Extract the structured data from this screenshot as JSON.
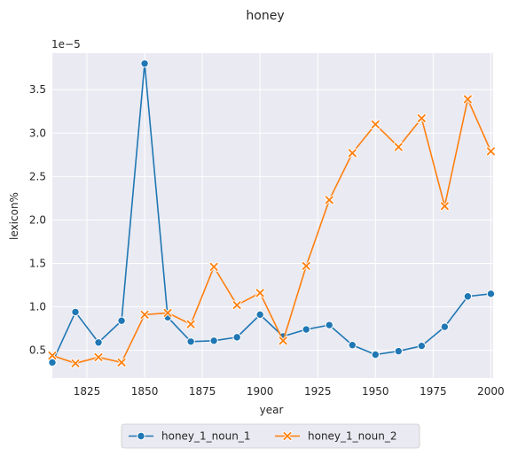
{
  "chart_data": {
    "type": "line",
    "title": "honey",
    "xlabel": "year",
    "ylabel": "lexicon%",
    "y_multiplier": "1e−5",
    "xlim": [
      1810,
      2001
    ],
    "ylim": [
      0.18,
      3.92
    ],
    "x_ticks": [
      1825,
      1850,
      1875,
      1900,
      1925,
      1950,
      1975,
      2000
    ],
    "y_ticks": [
      0.5,
      1.0,
      1.5,
      2.0,
      2.5,
      3.0,
      3.5
    ],
    "y_tick_labels": [
      "0.5",
      "1.0",
      "1.5",
      "2.0",
      "2.5",
      "3.0",
      "3.5"
    ],
    "grid": true,
    "background": "#eaeaf2",
    "legend_placement": "bottom-center",
    "x": [
      1810,
      1820,
      1830,
      1840,
      1850,
      1860,
      1870,
      1880,
      1890,
      1900,
      1910,
      1920,
      1930,
      1940,
      1950,
      1960,
      1970,
      1980,
      1990,
      2000
    ],
    "series": [
      {
        "name": "honey_1_noun_1",
        "color": "#1f77b4",
        "marker": "circle",
        "values": [
          0.36,
          0.94,
          0.59,
          0.84,
          3.8,
          0.88,
          0.6,
          0.61,
          0.65,
          0.91,
          0.66,
          0.74,
          0.79,
          0.56,
          0.45,
          0.49,
          0.55,
          0.77,
          1.12,
          1.15
        ]
      },
      {
        "name": "honey_1_noun_2",
        "color": "#ff7f0e",
        "marker": "x",
        "values": [
          0.44,
          0.35,
          0.42,
          0.36,
          0.91,
          0.93,
          0.8,
          1.46,
          1.02,
          1.16,
          0.61,
          1.47,
          2.23,
          2.77,
          3.1,
          2.84,
          3.17,
          2.16,
          3.39,
          2.79
        ]
      }
    ]
  }
}
